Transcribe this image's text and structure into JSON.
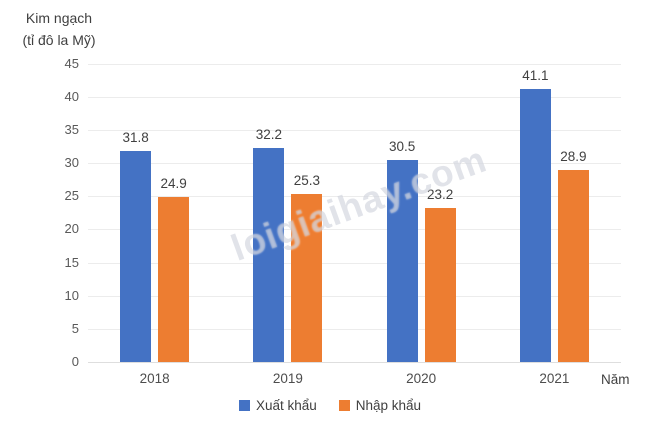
{
  "chart_data": {
    "type": "bar",
    "title": "",
    "y_axis_title_lines": [
      "Kim ngạch",
      "(tỉ đô la Mỹ)"
    ],
    "x_axis_title": "Năm",
    "categories": [
      "2018",
      "2019",
      "2020",
      "2021"
    ],
    "series": [
      {
        "name": "Xuất khẩu",
        "color": "#4472C4",
        "values": [
          31.8,
          32.2,
          30.5,
          41.1
        ]
      },
      {
        "name": "Nhập khẩu",
        "color": "#ED7D31",
        "values": [
          24.9,
          25.3,
          23.2,
          28.9
        ]
      }
    ],
    "ylim": [
      0,
      45
    ],
    "ytick_step": 5,
    "grid": true,
    "legend_position": "bottom",
    "data_labels": true
  },
  "watermark": {
    "text": "loigiaihay.com"
  },
  "colors": {
    "export_bar": "#4472C4",
    "import_bar": "#ED7D31",
    "gridline": "#ececec",
    "axis_text": "#595959",
    "label_text": "#404040",
    "background": "#ffffff"
  }
}
